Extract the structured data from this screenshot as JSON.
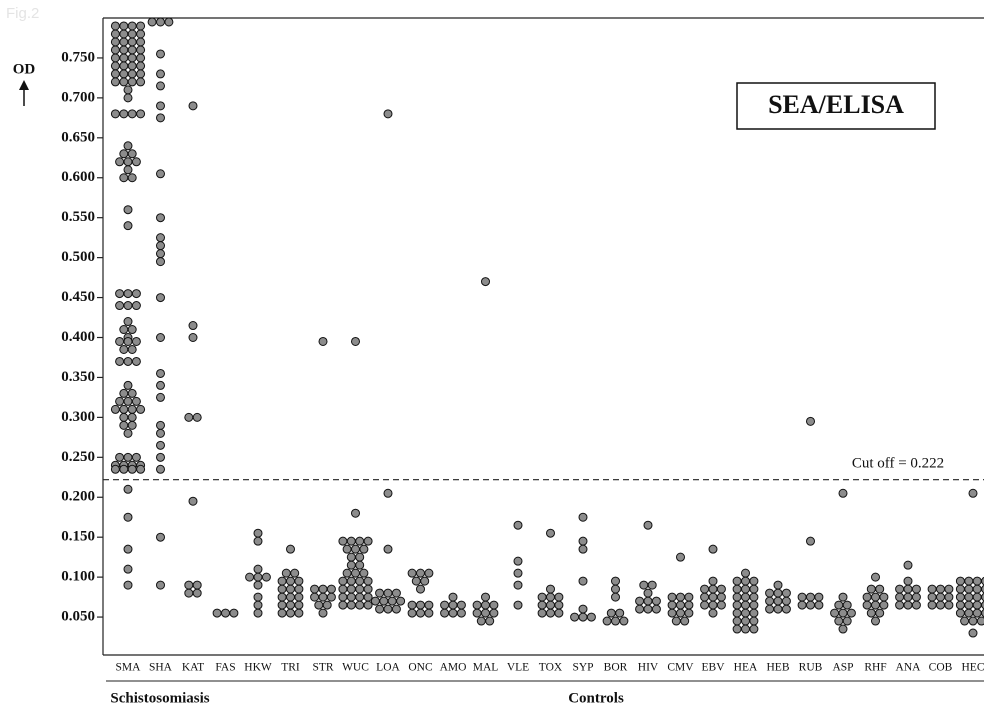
{
  "chart_data": {
    "type": "dot",
    "figure_label": "Fig.2",
    "title": "SEA/ELISA",
    "y_label": "OD",
    "cutoff": 0.222,
    "cutoff_label": "Cut off  = 0.222",
    "ylim": [
      0,
      0.8
    ],
    "yticks": [
      {
        "value": 0.05,
        "label": "0.050"
      },
      {
        "value": 0.1,
        "label": "0.100"
      },
      {
        "value": 0.15,
        "label": "0.150"
      },
      {
        "value": 0.2,
        "label": "0.200"
      },
      {
        "value": 0.25,
        "label": "0.250"
      },
      {
        "value": 0.3,
        "label": "0.300"
      },
      {
        "value": 0.35,
        "label": "0.350"
      },
      {
        "value": 0.4,
        "label": "0.400"
      },
      {
        "value": 0.45,
        "label": "0.450"
      },
      {
        "value": 0.5,
        "label": "0.500"
      },
      {
        "value": 0.55,
        "label": "0.550"
      },
      {
        "value": 0.6,
        "label": "0.600"
      },
      {
        "value": 0.65,
        "label": "0.650"
      },
      {
        "value": 0.7,
        "label": "0.700"
      },
      {
        "value": 0.75,
        "label": "0.750"
      }
    ],
    "color": "#8c8c8c",
    "groups": [
      {
        "name": "Schistosomiasis",
        "first": 0,
        "last": 2
      },
      {
        "name": "Controls",
        "first": 3,
        "last": 26
      }
    ],
    "categories": [
      "SMA",
      "SHA",
      "KAT",
      "FAS",
      "HKW",
      "TRI",
      "STR",
      "WUC",
      "LOA",
      "ONC",
      "AMO",
      "MAL",
      "VLE",
      "TOX",
      "SYP",
      "BOR",
      "HIV",
      "CMV",
      "EBV",
      "HEA",
      "HEB",
      "RUB",
      "ASP",
      "RHF",
      "ANA",
      "COB",
      "HEC"
    ],
    "values": [
      [
        0.79,
        0.79,
        0.79,
        0.79,
        0.78,
        0.78,
        0.78,
        0.78,
        0.77,
        0.77,
        0.77,
        0.77,
        0.76,
        0.76,
        0.76,
        0.76,
        0.75,
        0.75,
        0.75,
        0.75,
        0.74,
        0.74,
        0.74,
        0.74,
        0.73,
        0.73,
        0.73,
        0.73,
        0.72,
        0.72,
        0.72,
        0.72,
        0.71,
        0.7,
        0.68,
        0.68,
        0.68,
        0.68,
        0.64,
        0.63,
        0.63,
        0.62,
        0.62,
        0.62,
        0.61,
        0.6,
        0.6,
        0.56,
        0.54,
        0.455,
        0.455,
        0.455,
        0.44,
        0.44,
        0.44,
        0.42,
        0.41,
        0.41,
        0.4,
        0.395,
        0.395,
        0.395,
        0.385,
        0.385,
        0.37,
        0.37,
        0.37,
        0.34,
        0.33,
        0.33,
        0.32,
        0.32,
        0.32,
        0.31,
        0.31,
        0.31,
        0.31,
        0.3,
        0.3,
        0.29,
        0.29,
        0.28,
        0.25,
        0.25,
        0.25,
        0.24,
        0.24,
        0.24,
        0.24,
        0.235,
        0.235,
        0.235,
        0.235,
        0.21,
        0.175,
        0.135,
        0.11,
        0.09
      ],
      [
        0.795,
        0.795,
        0.795,
        0.755,
        0.73,
        0.715,
        0.69,
        0.675,
        0.605,
        0.55,
        0.525,
        0.515,
        0.505,
        0.495,
        0.45,
        0.4,
        0.355,
        0.34,
        0.325,
        0.29,
        0.28,
        0.265,
        0.25,
        0.235,
        0.15,
        0.09
      ],
      [
        0.69,
        0.415,
        0.4,
        0.3,
        0.3,
        0.195,
        0.09,
        0.09,
        0.08,
        0.08
      ],
      [
        0.055,
        0.055,
        0.055
      ],
      [
        0.155,
        0.145,
        0.11,
        0.1,
        0.1,
        0.1,
        0.09,
        0.075,
        0.065,
        0.055
      ],
      [
        0.135,
        0.105,
        0.105,
        0.095,
        0.095,
        0.095,
        0.085,
        0.085,
        0.085,
        0.075,
        0.075,
        0.075,
        0.065,
        0.065,
        0.065,
        0.055,
        0.055,
        0.055
      ],
      [
        0.395,
        0.085,
        0.085,
        0.085,
        0.075,
        0.075,
        0.075,
        0.065,
        0.065,
        0.055
      ],
      [
        0.395,
        0.18,
        0.145,
        0.145,
        0.145,
        0.145,
        0.135,
        0.135,
        0.135,
        0.125,
        0.125,
        0.115,
        0.115,
        0.105,
        0.105,
        0.105,
        0.095,
        0.095,
        0.095,
        0.095,
        0.085,
        0.085,
        0.085,
        0.085,
        0.075,
        0.075,
        0.075,
        0.075,
        0.065,
        0.065,
        0.065,
        0.065
      ],
      [
        0.68,
        0.205,
        0.135,
        0.08,
        0.08,
        0.08,
        0.07,
        0.07,
        0.07,
        0.07,
        0.06,
        0.06,
        0.06
      ],
      [
        0.105,
        0.105,
        0.105,
        0.095,
        0.095,
        0.085,
        0.065,
        0.065,
        0.065,
        0.055,
        0.055,
        0.055
      ],
      [
        0.075,
        0.065,
        0.065,
        0.065,
        0.055,
        0.055,
        0.055
      ],
      [
        0.47,
        0.075,
        0.065,
        0.065,
        0.065,
        0.055,
        0.055,
        0.055,
        0.045,
        0.045
      ],
      [
        0.165,
        0.12,
        0.105,
        0.09,
        0.065
      ],
      [
        0.155,
        0.085,
        0.075,
        0.075,
        0.075,
        0.065,
        0.065,
        0.065,
        0.055,
        0.055,
        0.055
      ],
      [
        0.175,
        0.145,
        0.135,
        0.095,
        0.06,
        0.05,
        0.05,
        0.05
      ],
      [
        0.095,
        0.085,
        0.075,
        0.055,
        0.055,
        0.045,
        0.045,
        0.045
      ],
      [
        0.165,
        0.09,
        0.09,
        0.08,
        0.07,
        0.07,
        0.07,
        0.06,
        0.06,
        0.06
      ],
      [
        0.125,
        0.075,
        0.075,
        0.075,
        0.065,
        0.065,
        0.065,
        0.055,
        0.055,
        0.055,
        0.045,
        0.045
      ],
      [
        0.135,
        0.095,
        0.085,
        0.085,
        0.085,
        0.075,
        0.075,
        0.075,
        0.065,
        0.065,
        0.065,
        0.055
      ],
      [
        0.105,
        0.095,
        0.095,
        0.095,
        0.085,
        0.085,
        0.085,
        0.075,
        0.075,
        0.075,
        0.065,
        0.065,
        0.065,
        0.055,
        0.055,
        0.055,
        0.045,
        0.045,
        0.045,
        0.035,
        0.035,
        0.035
      ],
      [
        0.09,
        0.08,
        0.08,
        0.08,
        0.07,
        0.07,
        0.07,
        0.06,
        0.06,
        0.06
      ],
      [
        0.295,
        0.145,
        0.075,
        0.075,
        0.075,
        0.065,
        0.065,
        0.065
      ],
      [
        0.205,
        0.075,
        0.065,
        0.065,
        0.055,
        0.055,
        0.055,
        0.045,
        0.045,
        0.035
      ],
      [
        0.1,
        0.085,
        0.085,
        0.075,
        0.075,
        0.075,
        0.065,
        0.065,
        0.065,
        0.055,
        0.055,
        0.045
      ],
      [
        0.115,
        0.095,
        0.085,
        0.085,
        0.085,
        0.075,
        0.075,
        0.075,
        0.065,
        0.065,
        0.065
      ],
      [
        0.085,
        0.085,
        0.085,
        0.075,
        0.075,
        0.075,
        0.065,
        0.065,
        0.065
      ],
      [
        0.205,
        0.095,
        0.095,
        0.095,
        0.095,
        0.085,
        0.085,
        0.085,
        0.085,
        0.075,
        0.075,
        0.075,
        0.075,
        0.065,
        0.065,
        0.065,
        0.065,
        0.055,
        0.055,
        0.055,
        0.055,
        0.045,
        0.045,
        0.045,
        0.03
      ]
    ]
  }
}
